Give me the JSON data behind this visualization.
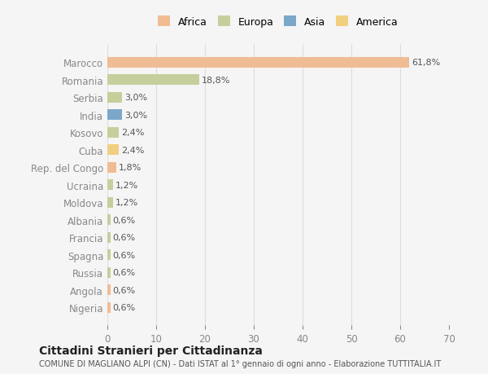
{
  "countries": [
    "Marocco",
    "Romania",
    "Serbia",
    "India",
    "Kosovo",
    "Cuba",
    "Rep. del Congo",
    "Ucraina",
    "Moldova",
    "Albania",
    "Francia",
    "Spagna",
    "Russia",
    "Angola",
    "Nigeria"
  ],
  "values": [
    61.8,
    18.8,
    3.0,
    3.0,
    2.4,
    2.4,
    1.8,
    1.2,
    1.2,
    0.6,
    0.6,
    0.6,
    0.6,
    0.6,
    0.6
  ],
  "labels": [
    "61,8%",
    "18,8%",
    "3,0%",
    "3,0%",
    "2,4%",
    "2,4%",
    "1,8%",
    "1,2%",
    "1,2%",
    "0,6%",
    "0,6%",
    "0,6%",
    "0,6%",
    "0,6%",
    "0,6%"
  ],
  "colors": [
    "#F0BC94",
    "#C5CF9C",
    "#C5CF9C",
    "#7BA7C9",
    "#C5CF9C",
    "#F0D080",
    "#F0BC94",
    "#C5CF9C",
    "#C5CF9C",
    "#C5CF9C",
    "#C5CF9C",
    "#C5CF9C",
    "#C5CF9C",
    "#F0BC94",
    "#F0BC94"
  ],
  "legend_labels": [
    "Africa",
    "Europa",
    "Asia",
    "America"
  ],
  "legend_colors": [
    "#F0BC94",
    "#C5CF9C",
    "#7BA7C9",
    "#F0D080"
  ],
  "title": "Cittadini Stranieri per Cittadinanza",
  "subtitle": "COMUNE DI MAGLIANO ALPI (CN) - Dati ISTAT al 1° gennaio di ogni anno - Elaborazione TUTTITALIA.IT",
  "xlim": [
    0,
    70
  ],
  "xticks": [
    0,
    10,
    20,
    30,
    40,
    50,
    60,
    70
  ],
  "background_color": "#f5f5f5"
}
